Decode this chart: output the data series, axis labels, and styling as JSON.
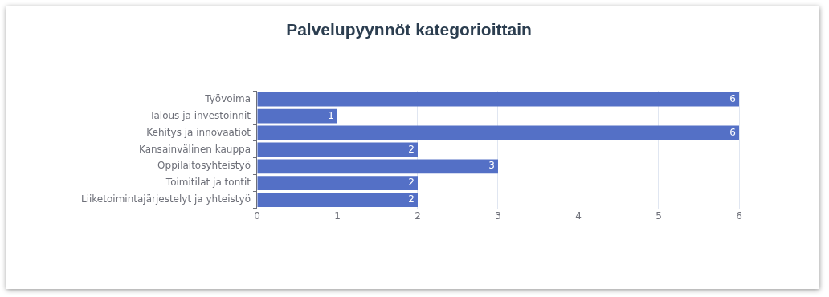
{
  "chart_data": {
    "type": "bar",
    "orientation": "horizontal",
    "title": "Palvelupyynnöt kategorioittain",
    "categories": [
      "Työvoima",
      "Talous ja investoinnit",
      "Kehitys ja innovaatiot",
      "Kansainvälinen kauppa",
      "Oppilaitosyhteistyö",
      "Toimitilat ja tontit",
      "Liiketoimintajärjestelyt ja yhteistyö"
    ],
    "values": [
      6,
      1,
      6,
      2,
      3,
      2,
      2
    ],
    "color": "#5470c6",
    "xlim": [
      0,
      6
    ],
    "xticks": [
      0,
      1,
      2,
      3,
      4,
      5,
      6
    ],
    "grid": "x",
    "data_labels": true,
    "legend": false
  }
}
